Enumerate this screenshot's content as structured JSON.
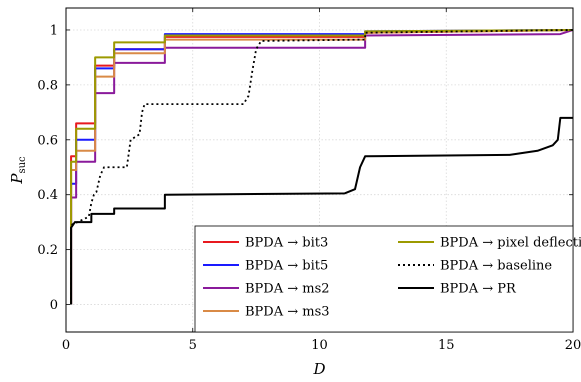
{
  "chart_data": {
    "type": "line",
    "xlabel": "D",
    "ylabel": "P",
    "ylabel_sub": "suc",
    "xlim": [
      0,
      20
    ],
    "ylim": [
      -0.1,
      1.08
    ],
    "xticks": [
      0,
      5,
      10,
      15,
      20
    ],
    "yticks": [
      0,
      0.2,
      0.4,
      0.6,
      0.8,
      1
    ],
    "xtick_labels": [
      "0",
      "5",
      "10",
      "15",
      "20"
    ],
    "ytick_labels": [
      "0",
      "0.2",
      "0.4",
      "0.6",
      "0.8",
      "1"
    ],
    "grid": true,
    "legend_position": "bottom-right",
    "series": [
      {
        "name": "BPDA → bit3",
        "color": "#e8191f",
        "dash": "solid",
        "points": [
          [
            0.2,
            0
          ],
          [
            0.2,
            0.54
          ],
          [
            0.4,
            0.54
          ],
          [
            0.4,
            0.66
          ],
          [
            1.15,
            0.66
          ],
          [
            1.15,
            0.87
          ],
          [
            1.9,
            0.87
          ],
          [
            1.9,
            0.93
          ],
          [
            3.9,
            0.93
          ],
          [
            3.9,
            0.975
          ],
          [
            11.8,
            0.975
          ],
          [
            11.8,
            0.99
          ],
          [
            20,
            1.0
          ]
        ]
      },
      {
        "name": "BPDA → bit5",
        "color": "#1a1aff",
        "dash": "solid",
        "points": [
          [
            0.2,
            0
          ],
          [
            0.2,
            0.44
          ],
          [
            0.4,
            0.44
          ],
          [
            0.4,
            0.6
          ],
          [
            1.15,
            0.6
          ],
          [
            1.15,
            0.86
          ],
          [
            1.9,
            0.86
          ],
          [
            1.9,
            0.93
          ],
          [
            3.9,
            0.93
          ],
          [
            3.9,
            0.985
          ],
          [
            11.8,
            0.985
          ],
          [
            11.8,
            0.995
          ],
          [
            20,
            1.0
          ]
        ]
      },
      {
        "name": "BPDA → ms2",
        "color": "#8a1a9b",
        "dash": "solid",
        "points": [
          [
            0.2,
            0
          ],
          [
            0.2,
            0.39
          ],
          [
            0.4,
            0.39
          ],
          [
            0.4,
            0.52
          ],
          [
            1.15,
            0.52
          ],
          [
            1.15,
            0.77
          ],
          [
            1.9,
            0.77
          ],
          [
            1.9,
            0.88
          ],
          [
            3.9,
            0.88
          ],
          [
            3.9,
            0.935
          ],
          [
            11.8,
            0.935
          ],
          [
            11.8,
            0.98
          ],
          [
            19.5,
            0.985
          ],
          [
            20,
            1.0
          ]
        ]
      },
      {
        "name": "BPDA → ms3",
        "color": "#d98a46",
        "dash": "solid",
        "points": [
          [
            0.2,
            0
          ],
          [
            0.2,
            0.49
          ],
          [
            0.4,
            0.49
          ],
          [
            0.4,
            0.56
          ],
          [
            1.15,
            0.56
          ],
          [
            1.15,
            0.83
          ],
          [
            1.9,
            0.83
          ],
          [
            1.9,
            0.915
          ],
          [
            3.9,
            0.915
          ],
          [
            3.9,
            0.965
          ],
          [
            11.8,
            0.965
          ],
          [
            11.8,
            0.99
          ],
          [
            20,
            1.0
          ]
        ]
      },
      {
        "name": "BPDA → pixel deflection",
        "color": "#9c9a00",
        "dash": "solid",
        "points": [
          [
            0.2,
            0
          ],
          [
            0.2,
            0.52
          ],
          [
            0.4,
            0.52
          ],
          [
            0.4,
            0.64
          ],
          [
            1.15,
            0.64
          ],
          [
            1.15,
            0.9
          ],
          [
            1.9,
            0.9
          ],
          [
            1.9,
            0.955
          ],
          [
            3.9,
            0.955
          ],
          [
            3.9,
            0.98
          ],
          [
            11.8,
            0.98
          ],
          [
            11.8,
            0.995
          ],
          [
            20,
            1.0
          ]
        ]
      },
      {
        "name": "BPDA → baseline",
        "color": "#000000",
        "dash": "dotted",
        "points": [
          [
            0.2,
            0
          ],
          [
            0.2,
            0.29
          ],
          [
            0.45,
            0.3
          ],
          [
            0.9,
            0.32
          ],
          [
            1.0,
            0.37
          ],
          [
            1.1,
            0.4
          ],
          [
            1.2,
            0.41
          ],
          [
            1.35,
            0.47
          ],
          [
            1.5,
            0.5
          ],
          [
            2.4,
            0.5
          ],
          [
            2.55,
            0.6
          ],
          [
            2.9,
            0.62
          ],
          [
            3.0,
            0.7
          ],
          [
            3.1,
            0.73
          ],
          [
            7.0,
            0.73
          ],
          [
            7.2,
            0.76
          ],
          [
            7.35,
            0.85
          ],
          [
            7.5,
            0.93
          ],
          [
            7.7,
            0.96
          ],
          [
            11.8,
            0.965
          ],
          [
            11.8,
            0.99
          ],
          [
            20,
            1.0
          ]
        ]
      },
      {
        "name": "BPDA → PR",
        "color": "#000000",
        "dash": "solid",
        "points": [
          [
            0.2,
            0
          ],
          [
            0.2,
            0.28
          ],
          [
            0.35,
            0.3
          ],
          [
            1.0,
            0.3
          ],
          [
            1.0,
            0.33
          ],
          [
            1.9,
            0.33
          ],
          [
            1.9,
            0.35
          ],
          [
            3.9,
            0.35
          ],
          [
            3.9,
            0.4
          ],
          [
            11.0,
            0.405
          ],
          [
            11.4,
            0.42
          ],
          [
            11.6,
            0.5
          ],
          [
            11.8,
            0.54
          ],
          [
            17.5,
            0.545
          ],
          [
            18.6,
            0.56
          ],
          [
            19.2,
            0.58
          ],
          [
            19.4,
            0.6
          ],
          [
            19.5,
            0.68
          ],
          [
            20,
            0.68
          ]
        ]
      }
    ]
  }
}
